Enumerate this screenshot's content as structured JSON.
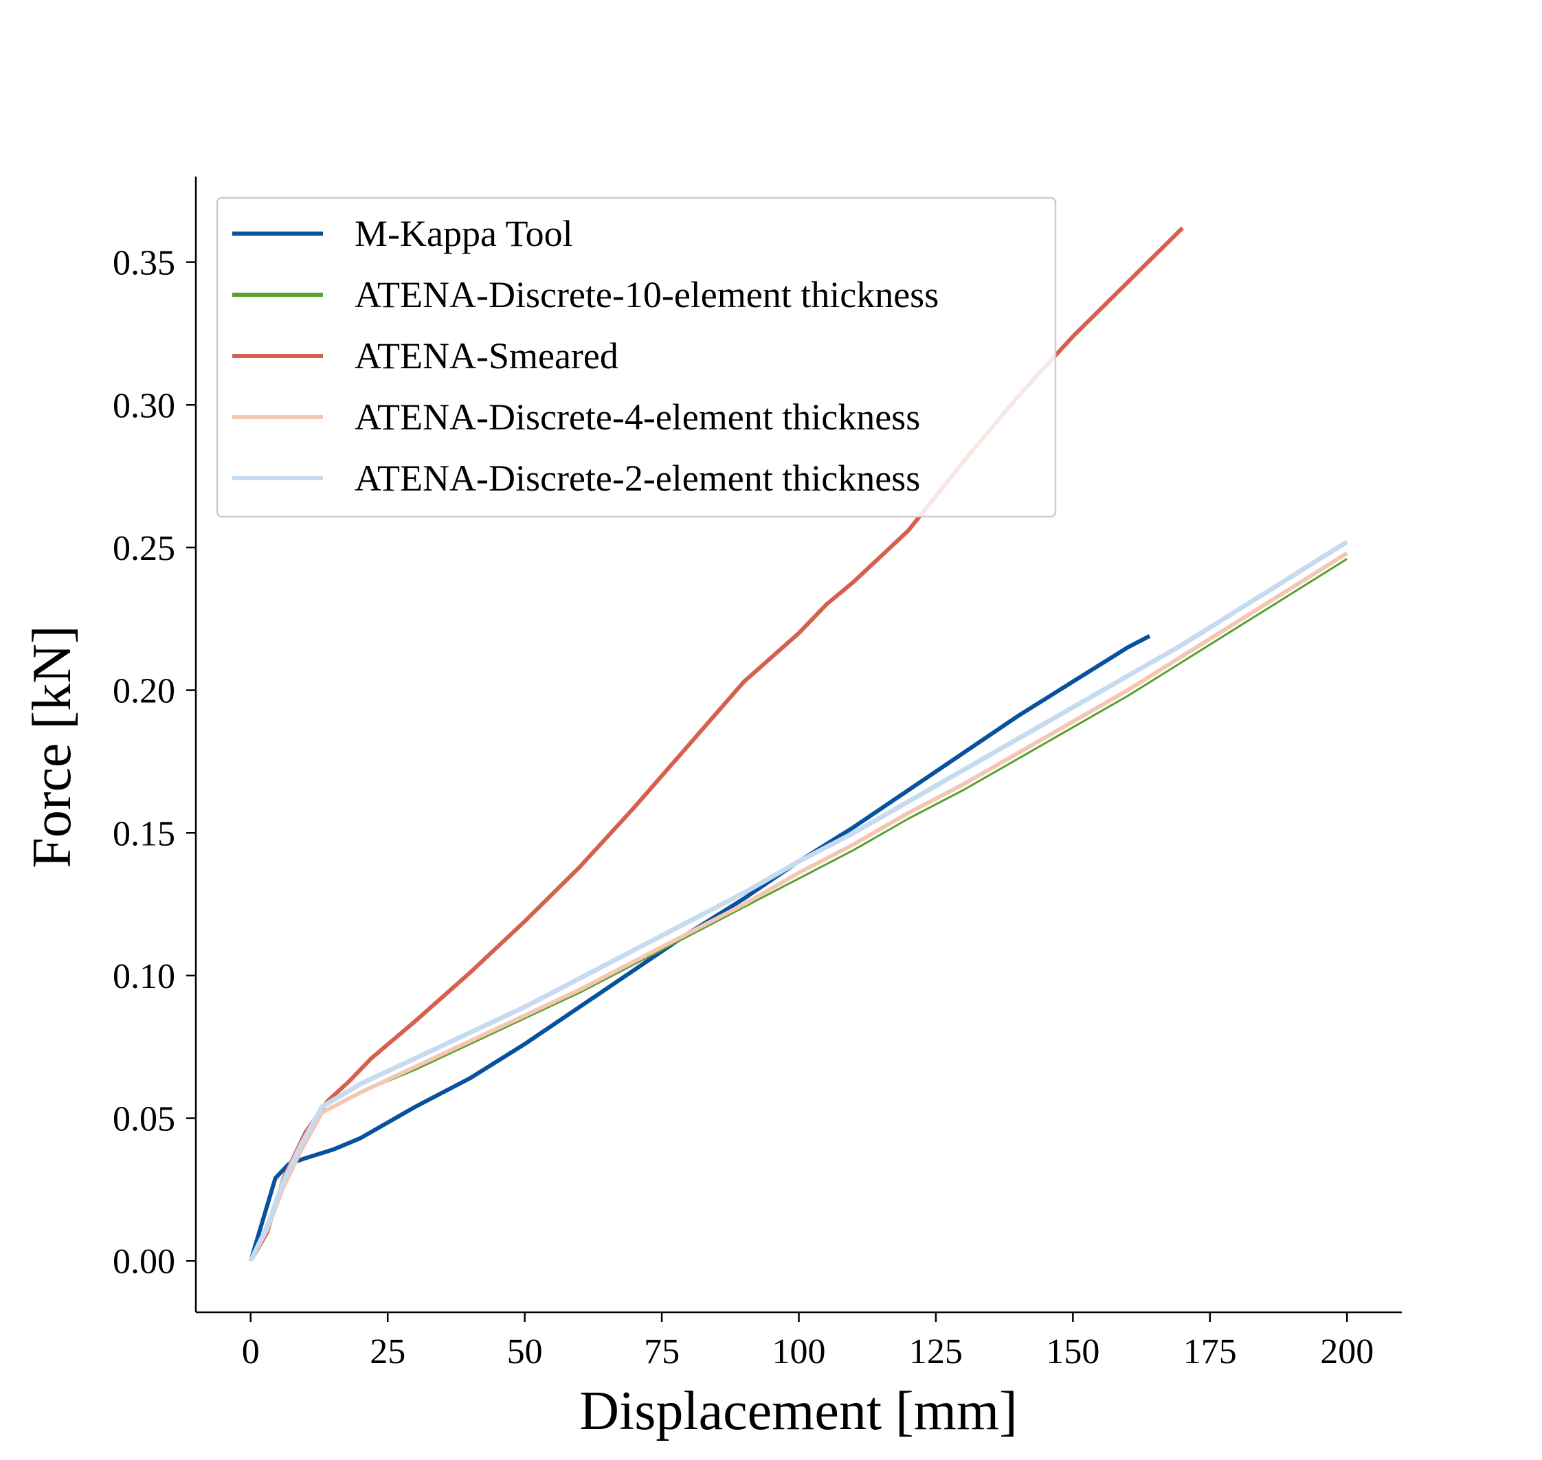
{
  "chart_data": {
    "type": "line",
    "title": "",
    "xlabel": "Displacement [mm]",
    "ylabel": "Force [kN]",
    "xlim": [
      -10,
      210
    ],
    "ylim": [
      -0.018,
      0.38
    ],
    "xticks": [
      0,
      25,
      50,
      75,
      100,
      125,
      150,
      175,
      200
    ],
    "yticks": [
      0.0,
      0.05,
      0.1,
      0.15,
      0.2,
      0.25,
      0.3,
      0.35
    ],
    "xtick_labels": [
      "0",
      "25",
      "50",
      "75",
      "100",
      "125",
      "150",
      "175",
      "200"
    ],
    "ytick_labels": [
      "0.00",
      "0.05",
      "0.10",
      "0.15",
      "0.20",
      "0.25",
      "0.30",
      "0.35"
    ],
    "grid": false,
    "legend_position": "upper-left",
    "series": [
      {
        "name": "M-Kappa Tool",
        "color": "#08519c",
        "width": 6,
        "points": [
          [
            0,
            0.0
          ],
          [
            4.5,
            0.029
          ],
          [
            7,
            0.034
          ],
          [
            10,
            0.036
          ],
          [
            15,
            0.039
          ],
          [
            20,
            0.043
          ],
          [
            30,
            0.054
          ],
          [
            40,
            0.064
          ],
          [
            50,
            0.076
          ],
          [
            60,
            0.089
          ],
          [
            70,
            0.102
          ],
          [
            80,
            0.115
          ],
          [
            90,
            0.127
          ],
          [
            100,
            0.14
          ],
          [
            110,
            0.152
          ],
          [
            120,
            0.165
          ],
          [
            130,
            0.178
          ],
          [
            140,
            0.191
          ],
          [
            150,
            0.203
          ],
          [
            160,
            0.215
          ],
          [
            164,
            0.219
          ]
        ]
      },
      {
        "name": "ATENA-Discrete-10-element thickness",
        "color": "#5aa02c",
        "width": 3,
        "points": [
          [
            0,
            0.0
          ],
          [
            3,
            0.011
          ],
          [
            6,
            0.026
          ],
          [
            9,
            0.038
          ],
          [
            13,
            0.052
          ],
          [
            20,
            0.059
          ],
          [
            30,
            0.067
          ],
          [
            40,
            0.076
          ],
          [
            50,
            0.085
          ],
          [
            60,
            0.094
          ],
          [
            70,
            0.104
          ],
          [
            80,
            0.114
          ],
          [
            90,
            0.124
          ],
          [
            100,
            0.134
          ],
          [
            110,
            0.144
          ],
          [
            120,
            0.155
          ],
          [
            130,
            0.165
          ],
          [
            140,
            0.176
          ],
          [
            150,
            0.187
          ],
          [
            160,
            0.198
          ],
          [
            170,
            0.21
          ],
          [
            180,
            0.222
          ],
          [
            190,
            0.234
          ],
          [
            200,
            0.246
          ]
        ]
      },
      {
        "name": "ATENA-Smeared",
        "color": "#d6604d",
        "width": 6,
        "points": [
          [
            0,
            0.0
          ],
          [
            3,
            0.01
          ],
          [
            6,
            0.029
          ],
          [
            10,
            0.045
          ],
          [
            14,
            0.056
          ],
          [
            18,
            0.063
          ],
          [
            22,
            0.071
          ],
          [
            30,
            0.084
          ],
          [
            40,
            0.101
          ],
          [
            50,
            0.119
          ],
          [
            60,
            0.138
          ],
          [
            70,
            0.159
          ],
          [
            80,
            0.181
          ],
          [
            90,
            0.203
          ],
          [
            100,
            0.22
          ],
          [
            105,
            0.23
          ],
          [
            110,
            0.238
          ],
          [
            120,
            0.256
          ],
          [
            130,
            0.28
          ],
          [
            140,
            0.303
          ],
          [
            150,
            0.324
          ],
          [
            160,
            0.343
          ],
          [
            170,
            0.362
          ]
        ]
      },
      {
        "name": "ATENA-Discrete-4-element thickness",
        "color": "#f4c7b4",
        "width": 6,
        "points": [
          [
            0,
            0.0
          ],
          [
            3,
            0.011
          ],
          [
            6,
            0.026
          ],
          [
            9,
            0.038
          ],
          [
            13,
            0.052
          ],
          [
            20,
            0.059
          ],
          [
            30,
            0.068
          ],
          [
            40,
            0.077
          ],
          [
            50,
            0.086
          ],
          [
            60,
            0.095
          ],
          [
            70,
            0.105
          ],
          [
            80,
            0.115
          ],
          [
            90,
            0.125
          ],
          [
            100,
            0.136
          ],
          [
            110,
            0.146
          ],
          [
            120,
            0.157
          ],
          [
            130,
            0.167
          ],
          [
            140,
            0.178
          ],
          [
            150,
            0.189
          ],
          [
            160,
            0.2
          ],
          [
            170,
            0.212
          ],
          [
            180,
            0.224
          ],
          [
            190,
            0.236
          ],
          [
            200,
            0.248
          ]
        ]
      },
      {
        "name": "ATENA-Discrete-2-element thickness",
        "color": "#c6dbef",
        "width": 7,
        "points": [
          [
            0,
            0.0
          ],
          [
            3,
            0.012
          ],
          [
            6,
            0.028
          ],
          [
            9,
            0.04
          ],
          [
            13,
            0.054
          ],
          [
            20,
            0.062
          ],
          [
            30,
            0.071
          ],
          [
            40,
            0.08
          ],
          [
            50,
            0.089
          ],
          [
            60,
            0.099
          ],
          [
            70,
            0.109
          ],
          [
            80,
            0.119
          ],
          [
            90,
            0.129
          ],
          [
            100,
            0.14
          ],
          [
            110,
            0.15
          ],
          [
            120,
            0.161
          ],
          [
            130,
            0.172
          ],
          [
            140,
            0.183
          ],
          [
            150,
            0.194
          ],
          [
            160,
            0.205
          ],
          [
            170,
            0.216
          ],
          [
            180,
            0.228
          ],
          [
            190,
            0.24
          ],
          [
            200,
            0.252
          ]
        ]
      }
    ]
  }
}
